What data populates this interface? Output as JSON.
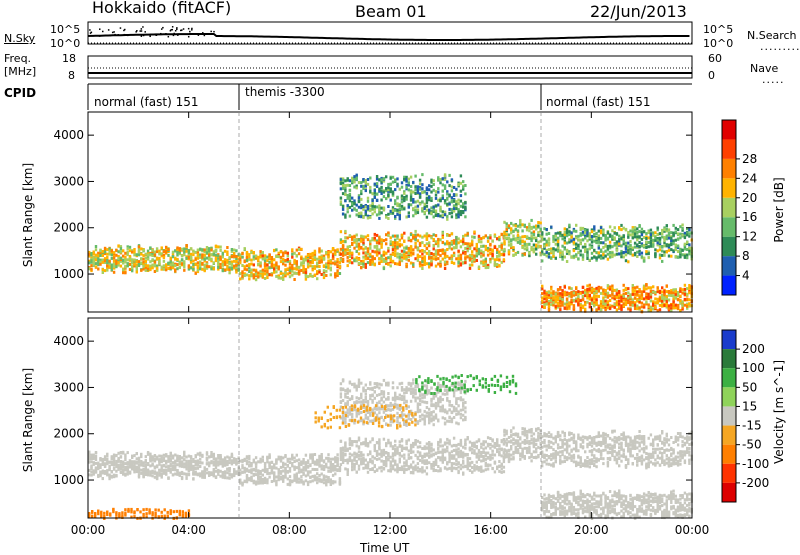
{
  "header": {
    "station": "Hokkaido (fitACF)",
    "beam": "Beam 01",
    "date": "22/Jun/2013"
  },
  "strip_nsky": {
    "left_label": "N.Sky",
    "right_label": "N.Search",
    "y_ticks_left": [
      "10^5",
      "10^0"
    ],
    "y_ticks_right": [
      "10^5",
      "10^0"
    ]
  },
  "strip_freq": {
    "left_label_line1": "Freq.",
    "left_label_line2": "[MHz]",
    "right_label": "Nave",
    "y_ticks_left": [
      "18",
      "8"
    ],
    "y_ticks_right": [
      "60",
      "0"
    ]
  },
  "cpid": {
    "label": "CPID",
    "segments": [
      "normal (fast) 151",
      "themis -3300",
      "normal (fast) 151"
    ]
  },
  "chart_data": [
    {
      "type": "heatmap",
      "title": "",
      "xlabel": "",
      "ylabel": "Slant Range [km]",
      "x_ticks": [
        "00:00",
        "04:00",
        "08:00",
        "12:00",
        "16:00",
        "20:00",
        "00:00"
      ],
      "y_ticks": [
        "1000",
        "2000",
        "3000",
        "4000"
      ],
      "x_range_hours": [
        0,
        24
      ],
      "ylim_km": [
        180,
        4500
      ],
      "colorbar": {
        "label": "Power [dB]",
        "ticks": [
          "4",
          "8",
          "12",
          "16",
          "20",
          "24",
          "28"
        ],
        "colors": [
          "#0022ff",
          "#1f5fb0",
          "#2e8b57",
          "#66bb6a",
          "#a8d060",
          "#ffb300",
          "#ff8000",
          "#ff4000",
          "#e00000"
        ]
      },
      "bands": [
        {
          "start_h": 0.0,
          "end_h": 6.0,
          "center_km": 1350,
          "width_km": 500,
          "level_db": 22
        },
        {
          "start_h": 6.0,
          "end_h": 10.0,
          "center_km": 1250,
          "width_km": 600,
          "level_db": 24
        },
        {
          "start_h": 10.0,
          "end_h": 16.5,
          "center_km": 1550,
          "width_km": 700,
          "level_db": 24
        },
        {
          "start_h": 10.0,
          "end_h": 15.0,
          "center_km": 2700,
          "width_km": 900,
          "level_db": 14
        },
        {
          "start_h": 16.5,
          "end_h": 18.0,
          "center_km": 1800,
          "width_km": 700,
          "level_db": 20
        },
        {
          "start_h": 18.0,
          "end_h": 24.0,
          "center_km": 500,
          "width_km": 500,
          "level_db": 26
        },
        {
          "start_h": 18.0,
          "end_h": 24.0,
          "center_km": 1700,
          "width_km": 700,
          "level_db": 16
        }
      ]
    },
    {
      "type": "heatmap",
      "title": "",
      "xlabel": "Time UT",
      "ylabel": "Slant Range [km]",
      "x_ticks": [
        "00:00",
        "04:00",
        "08:00",
        "12:00",
        "16:00",
        "20:00",
        "00:00"
      ],
      "y_ticks": [
        "1000",
        "2000",
        "3000",
        "4000"
      ],
      "x_range_hours": [
        0,
        24
      ],
      "ylim_km": [
        180,
        4500
      ],
      "colorbar": {
        "label": "Velocity [m s^-1]",
        "ticks": [
          "200",
          "100",
          "50",
          "15",
          "-15",
          "-50",
          "-100",
          "-200"
        ],
        "colors": [
          "#1a3ccc",
          "#2a7a3a",
          "#3cb043",
          "#8fd35a",
          "#c8c8c0",
          "#f5a623",
          "#ff7f00",
          "#ff3300",
          "#dd0000"
        ]
      },
      "dominant_value_ms": 0,
      "patches": [
        {
          "start_h": 9.0,
          "end_h": 13.0,
          "center_km": 2400,
          "width_km": 500,
          "value_ms": -40
        },
        {
          "start_h": 13.0,
          "end_h": 17.0,
          "center_km": 3100,
          "width_km": 400,
          "value_ms": 60
        },
        {
          "start_h": 0.0,
          "end_h": 4.0,
          "center_km": 300,
          "width_km": 200,
          "value_ms": -60
        }
      ]
    }
  ]
}
